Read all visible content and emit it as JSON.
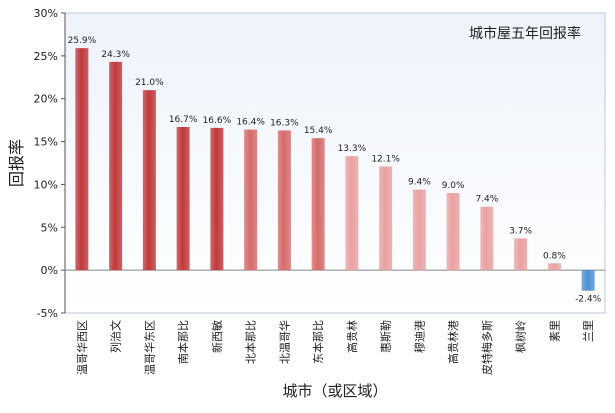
{
  "chart_data": {
    "type": "bar",
    "title": "城市屋五年回报率",
    "xlabel": "城市（或区域）",
    "ylabel": "回报率",
    "ylim": [
      -5,
      30
    ],
    "yticks": [
      "-5%",
      "0%",
      "5%",
      "10%",
      "15%",
      "20%",
      "25%",
      "30%"
    ],
    "ytick_values": [
      -5,
      0,
      5,
      10,
      15,
      20,
      25,
      30
    ],
    "grid": false,
    "categories": [
      "温哥华西区",
      "列治文",
      "温哥华东区",
      "南本那比",
      "新西敏",
      "北本那比",
      "北温哥华",
      "东本那比",
      "高贵林",
      "惠斯勒",
      "穆迪港",
      "高贵林港",
      "皮特梅多斯",
      "枫树岭",
      "素里",
      "兰里"
    ],
    "values": [
      25.9,
      24.3,
      21.0,
      16.7,
      16.6,
      16.4,
      16.3,
      15.4,
      13.3,
      12.1,
      9.4,
      9.0,
      7.4,
      3.7,
      0.8,
      -2.4
    ],
    "value_labels": [
      "25.9%",
      "24.3%",
      "21.0%",
      "16.7%",
      "16.6%",
      "16.4%",
      "16.3%",
      "15.4%",
      "13.3%",
      "12.1%",
      "9.4%",
      "9.0%",
      "7.4%",
      "3.7%",
      "0.8%",
      "-2.4%"
    ],
    "colors": {
      "dark_red": "#c0393b",
      "mid_red": "#d66a6a",
      "light_pink": "#e9a1a1",
      "negative_blue": "#4f8fd6",
      "plot_bg_top": "#eef3fb",
      "plot_bg_bottom": "#ffffff",
      "axis": "#555555"
    }
  }
}
